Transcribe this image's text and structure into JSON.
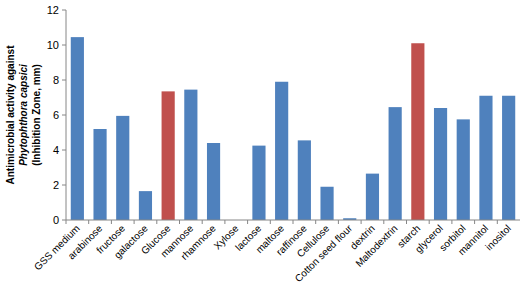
{
  "chart_data": {
    "type": "bar",
    "ylabel": [
      "Antimicrobial activity against",
      "Phytophthora capsici",
      "(Inhibition Zone, mm)"
    ],
    "categories": [
      "GSS medium",
      "arabinose",
      "fructose",
      "galactose",
      "Glucose",
      "mannose",
      "rhamnose",
      "Xylose",
      "lactose",
      "maltose",
      "raffinose",
      "Cellulose",
      "Cotton seed flour",
      "dextrin",
      "Maltodextrin",
      "starch",
      "glycerol",
      "sorbitol",
      "mannitol",
      "inositol"
    ],
    "values": [
      10.45,
      5.2,
      5.95,
      1.65,
      7.35,
      7.45,
      4.4,
      0,
      4.25,
      7.9,
      4.55,
      1.9,
      0.1,
      2.65,
      6.45,
      10.1,
      6.4,
      5.75,
      7.1,
      7.1
    ],
    "colors": [
      "#4f81bd",
      "#4f81bd",
      "#4f81bd",
      "#4f81bd",
      "#c0504d",
      "#4f81bd",
      "#4f81bd",
      "#4f81bd",
      "#4f81bd",
      "#4f81bd",
      "#4f81bd",
      "#4f81bd",
      "#4f81bd",
      "#4f81bd",
      "#4f81bd",
      "#c0504d",
      "#4f81bd",
      "#4f81bd",
      "#4f81bd",
      "#4f81bd"
    ],
    "ylim": [
      0,
      12
    ],
    "yticks": [
      0,
      2,
      4,
      6,
      8,
      10,
      12
    ],
    "grid": false
  }
}
